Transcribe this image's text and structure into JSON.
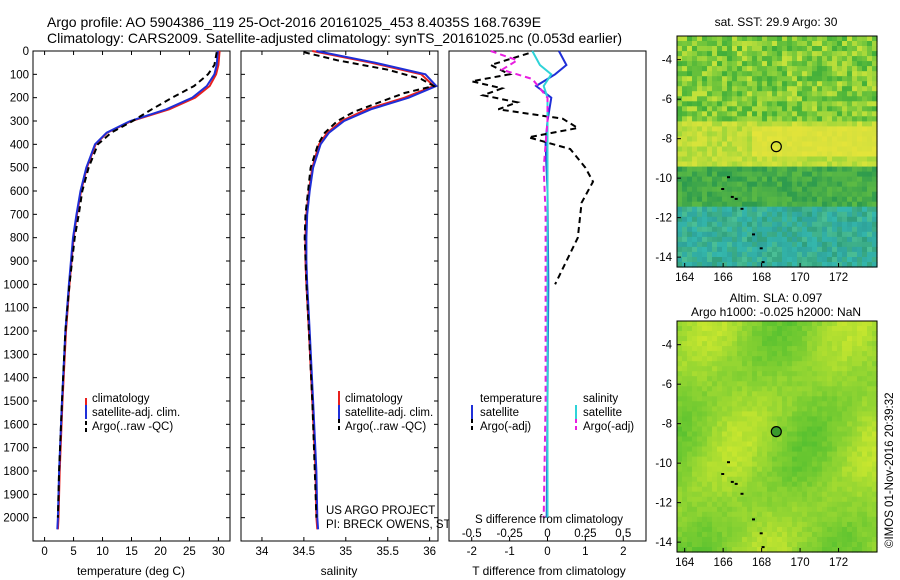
{
  "header": {
    "title_line1": "Argo profile: AO 5904386_119 25-Oct-2016 20161025_453 8.4035S 168.7639E",
    "title_line2": "Climatology: CARS2009. Satellite-adjusted climatology: synTS_20161025.nc (0.053d earlier)"
  },
  "colors": {
    "climatology": "#e8201e",
    "satellite": "#1f2fd8",
    "argo": "#000000",
    "sat_salinity": "#2fd3d8",
    "argo_salinity": "#e81ee0"
  },
  "chart_data": [
    {
      "type": "line",
      "name": "temperature-profile",
      "xlabel": "temperature (deg C)",
      "ylabel": "",
      "xlim": [
        -2,
        32
      ],
      "ylim": [
        2100,
        0
      ],
      "x_ticks": [
        "0",
        "5",
        "10",
        "15",
        "20",
        "25",
        "30"
      ],
      "y_ticks": [
        "0",
        "100",
        "200",
        "300",
        "400",
        "500",
        "600",
        "700",
        "800",
        "900",
        "1000",
        "1100",
        "1200",
        "1300",
        "1400",
        "1500",
        "1600",
        "1700",
        "1800",
        "1900",
        "2000"
      ],
      "legend": [
        "climatology",
        "satellite-adj. clim.",
        "Argo(..raw -QC)"
      ],
      "series": [
        {
          "name": "climatology",
          "style": "solid",
          "depth": [
            0,
            60,
            100,
            150,
            200,
            250,
            300,
            350,
            400,
            500,
            600,
            700,
            800,
            1000,
            1200,
            1500,
            1800,
            2000,
            2050
          ],
          "values": [
            30.2,
            30.0,
            29.6,
            28.5,
            26.0,
            21.5,
            15.0,
            10.8,
            8.8,
            7.3,
            6.3,
            5.6,
            5.0,
            4.3,
            3.7,
            3.1,
            2.6,
            2.4,
            2.3
          ]
        },
        {
          "name": "satellite-adj. clim.",
          "style": "solid",
          "depth": [
            0,
            60,
            100,
            150,
            200,
            250,
            300,
            350,
            400,
            500,
            600,
            700,
            800,
            1000,
            1200,
            1500,
            1800,
            2000,
            2050
          ],
          "values": [
            29.9,
            29.7,
            29.3,
            28.0,
            25.5,
            21.0,
            14.8,
            10.7,
            8.7,
            7.2,
            6.2,
            5.5,
            4.9,
            4.2,
            3.6,
            3.0,
            2.5,
            2.3,
            2.2
          ]
        },
        {
          "name": "Argo(..raw -QC)",
          "style": "dashed",
          "depth": [
            5,
            60,
            100,
            150,
            200,
            250,
            300,
            350,
            400,
            500,
            600,
            700,
            800,
            1000,
            1200,
            1500,
            1800,
            2000
          ],
          "values": [
            29.7,
            29.3,
            28.2,
            25.8,
            22.0,
            18.5,
            15.2,
            11.5,
            9.2,
            7.6,
            6.5,
            5.9,
            5.2,
            4.3,
            3.6,
            3.0,
            2.5,
            2.3
          ]
        }
      ]
    },
    {
      "type": "line",
      "name": "salinity-profile",
      "xlabel": "salinity",
      "xlim": [
        33.75,
        36.1
      ],
      "ylim": [
        2100,
        0
      ],
      "x_ticks": [
        "34",
        "34.5",
        "35",
        "35.5",
        "36"
      ],
      "legend": [
        "climatology",
        "satellite-adj. clim.",
        "Argo(..raw -QC)"
      ],
      "annotation_line1": "US ARGO PROJECT",
      "annotation_line2": "PI: BRECK OWENS, STEVE JAYNE, P.E. ROBBINS",
      "series": [
        {
          "name": "climatology",
          "style": "solid",
          "depth": [
            0,
            50,
            100,
            150,
            200,
            250,
            300,
            350,
            400,
            500,
            600,
            700,
            800,
            900,
            1000,
            1200,
            1500,
            1800,
            2000,
            2050
          ],
          "values": [
            34.6,
            35.3,
            35.9,
            36.05,
            35.7,
            35.25,
            34.95,
            34.78,
            34.68,
            34.6,
            34.56,
            34.53,
            34.52,
            34.52,
            34.53,
            34.56,
            34.6,
            34.64,
            34.65,
            34.66
          ]
        },
        {
          "name": "satellite-adj. clim.",
          "style": "solid",
          "depth": [
            0,
            50,
            100,
            150,
            200,
            250,
            300,
            350,
            400,
            500,
            600,
            700,
            800,
            900,
            1000,
            1200,
            1500,
            1800,
            2000,
            2050
          ],
          "values": [
            34.65,
            35.35,
            35.95,
            36.08,
            35.75,
            35.3,
            34.98,
            34.8,
            34.7,
            34.61,
            34.57,
            34.54,
            34.53,
            34.53,
            34.54,
            34.57,
            34.61,
            34.65,
            34.66,
            34.67
          ]
        },
        {
          "name": "Argo(..raw -QC)",
          "style": "dashed",
          "depth": [
            5,
            40,
            80,
            120,
            150,
            180,
            220,
            260,
            300,
            350,
            400,
            500,
            600,
            700,
            800,
            1000,
            1200,
            1500,
            1800,
            2000
          ],
          "values": [
            34.5,
            34.9,
            35.5,
            35.9,
            36.05,
            35.7,
            35.4,
            35.1,
            34.9,
            34.75,
            34.67,
            34.58,
            34.55,
            34.52,
            34.51,
            34.53,
            34.56,
            34.6,
            34.63,
            34.65
          ]
        }
      ]
    },
    {
      "type": "line",
      "name": "difference-profile",
      "xlabel": "T difference from climatology",
      "xlabel_top": "S difference from climatology",
      "xlim": [
        -2.6,
        2.6
      ],
      "ylim": [
        2100,
        0
      ],
      "x_ticks": [
        "-2",
        "-1",
        "0",
        "1",
        "2"
      ],
      "x_ticks_top": [
        "-0.5",
        "-0.25",
        "0",
        "0.25",
        "0.5"
      ],
      "legend_temperature": "temperature",
      "legend_salinity": "salinity",
      "legend": [
        "satellite",
        "Argo(-adj)",
        "satellite",
        "Argo(-adj)"
      ],
      "series": [
        {
          "name": "T satellite",
          "style": "solid",
          "depth": [
            0,
            60,
            100,
            150,
            200,
            300,
            400,
            600,
            1000,
            1500,
            2000
          ],
          "values": [
            0.3,
            0.5,
            0.2,
            -0.3,
            0.1,
            0.0,
            -0.05,
            0.0,
            0.02,
            0.0,
            -0.02
          ]
        },
        {
          "name": "T Argo(-adj)",
          "style": "dashed",
          "depth": [
            10,
            60,
            100,
            130,
            160,
            190,
            220,
            250,
            290,
            330,
            370,
            420,
            500,
            560,
            650,
            800,
            1000
          ],
          "values": [
            -0.5,
            -1.5,
            -1.0,
            -2.0,
            -1.2,
            -1.7,
            -0.8,
            -1.3,
            0.4,
            0.8,
            -0.5,
            0.6,
            1.0,
            1.2,
            0.9,
            0.8,
            0.2
          ]
        },
        {
          "name": "S satellite",
          "style": "solid",
          "depth": [
            0,
            60,
            100,
            150,
            200,
            300,
            500,
            800,
            1200,
            2000
          ],
          "values": [
            -0.4,
            -0.2,
            0.1,
            -0.1,
            0.0,
            0.0,
            0.0,
            0.0,
            0.0,
            0.0
          ]
        },
        {
          "name": "S Argo(-adj)",
          "style": "dashed",
          "depth": [
            0,
            40,
            80,
            120,
            160,
            200,
            300,
            500,
            700,
            1000,
            1500,
            2000
          ],
          "values": [
            -1.5,
            -0.8,
            -1.2,
            -0.4,
            -0.2,
            0.0,
            0.0,
            -0.1,
            -0.05,
            -0.05,
            -0.05,
            -0.1
          ]
        }
      ]
    },
    {
      "type": "heatmap",
      "name": "sst-map",
      "title": "sat. SST: 29.9 Argo: 30",
      "xlim": [
        163.6,
        174
      ],
      "ylim": [
        -14.5,
        -2.8
      ],
      "x_ticks": [
        "164",
        "166",
        "168",
        "170",
        "172"
      ],
      "y_ticks": [
        "-4",
        "-6",
        "-8",
        "-10",
        "-12",
        "-14"
      ],
      "argo_position": {
        "lon": 168.7639,
        "lat": -8.4035
      }
    },
    {
      "type": "heatmap",
      "name": "sla-map",
      "title_line1": "Altim. SLA: 0.097",
      "title_line2": "Argo h1000: -0.025 h2000: NaN",
      "xlim": [
        163.6,
        174
      ],
      "ylim": [
        -14.5,
        -2.8
      ],
      "x_ticks": [
        "164",
        "166",
        "168",
        "170",
        "172"
      ],
      "y_ticks": [
        "-4",
        "-6",
        "-8",
        "-10",
        "-12",
        "-14"
      ],
      "argo_position": {
        "lon": 168.7639,
        "lat": -8.4035
      }
    }
  ],
  "footer": {
    "credit": "©IMOS 01-Nov-2016 20:39:32"
  }
}
